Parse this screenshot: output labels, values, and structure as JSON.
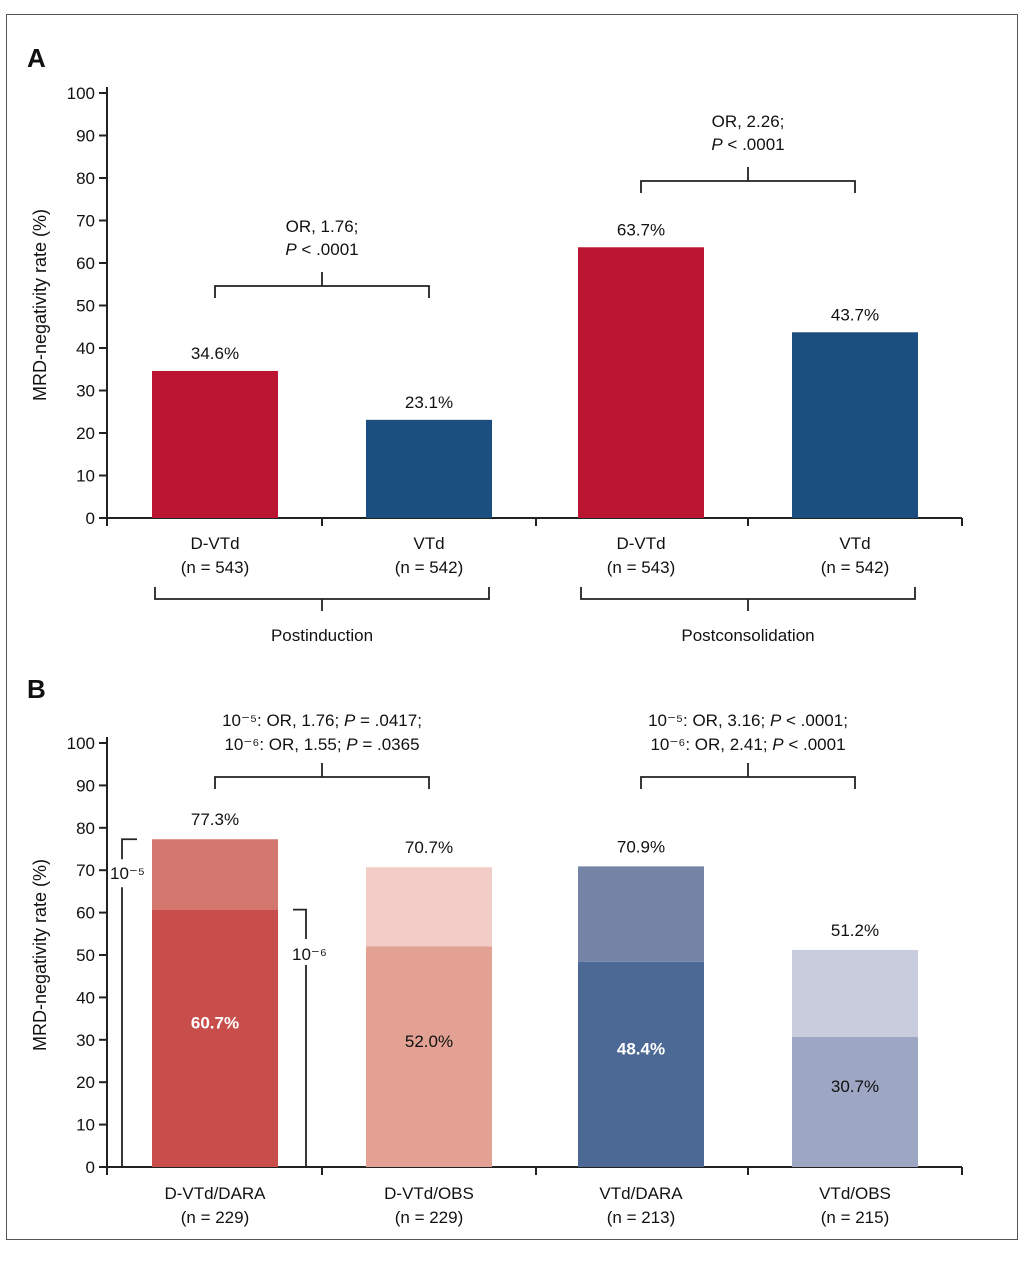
{
  "chart_data": [
    {
      "panel": "A",
      "type": "bar",
      "ylabel": "MRD-negativity rate (%)",
      "ylim": [
        0,
        100
      ],
      "yticks": [
        0,
        10,
        20,
        30,
        40,
        50,
        60,
        70,
        80,
        90,
        100
      ],
      "groups": [
        {
          "label": "Postinduction",
          "bars": [
            {
              "name": "D-VTd",
              "n": "(n = 543)",
              "value": 34.6,
              "value_label": "34.6%",
              "color": "#BB1533"
            },
            {
              "name": "VTd",
              "n": "(n = 542)",
              "value": 23.1,
              "value_label": "23.1%",
              "color": "#1B4F7F"
            }
          ],
          "annotation": [
            "OR, 1.76;",
            "P < .0001"
          ]
        },
        {
          "label": "Postconsolidation",
          "bars": [
            {
              "name": "D-VTd",
              "n": "(n = 543)",
              "value": 63.7,
              "value_label": "63.7%",
              "color": "#BB1533"
            },
            {
              "name": "VTd",
              "n": "(n = 542)",
              "value": 43.7,
              "value_label": "43.7%",
              "color": "#1B4F7F"
            }
          ],
          "annotation": [
            "OR, 2.26;",
            "P < .0001"
          ]
        }
      ]
    },
    {
      "panel": "B",
      "type": "bar",
      "ylabel": "MRD-negativity rate (%)",
      "ylim": [
        0,
        100
      ],
      "yticks": [
        0,
        10,
        20,
        30,
        40,
        50,
        60,
        70,
        80,
        90,
        100
      ],
      "bars": [
        {
          "name": "D-VTd/DARA",
          "n": "(n = 229)",
          "value_1e5": 77.3,
          "label_1e5": "77.3%",
          "value_1e6": 60.7,
          "label_1e6": "60.7%",
          "color_top": "#D4776E",
          "color_bottom": "#C84E4C",
          "inner_label_color": "#ffffff"
        },
        {
          "name": "D-VTd/OBS",
          "n": "(n = 229)",
          "value_1e5": 70.7,
          "label_1e5": "70.7%",
          "value_1e6": 52.0,
          "label_1e6": "52.0%",
          "color_top": "#F2CCC6",
          "color_bottom": "#E3A194",
          "inner_label_color": "#111111"
        },
        {
          "name": "VTd/DARA",
          "n": "(n = 213)",
          "value_1e5": 70.9,
          "label_1e5": "70.9%",
          "value_1e6": 48.4,
          "label_1e6": "48.4%",
          "color_top": "#7584A6",
          "color_bottom": "#4C6894",
          "inner_label_color": "#ffffff"
        },
        {
          "name": "VTd/OBS",
          "n": "(n = 215)",
          "value_1e5": 51.2,
          "label_1e5": "51.2%",
          "value_1e6": 30.7,
          "label_1e6": "30.7%",
          "color_top": "#C9CCDC",
          "color_bottom": "#9DA6C2",
          "inner_label_color": "#111111"
        }
      ],
      "threshold_labels": {
        "t1e5": "10⁻⁵",
        "t1e6": "10⁻⁶"
      },
      "annotations": [
        {
          "line1": [
            "10⁻⁵: OR, 1.76; ",
            "P",
            " = .0417;"
          ],
          "line2": [
            "10⁻⁶: OR, 1.55; ",
            "P",
            " = .0365"
          ]
        },
        {
          "line1": [
            "10⁻⁵: OR, 3.16; ",
            "P",
            " < .0001;"
          ],
          "line2": [
            "10⁻⁶: OR, 2.41; ",
            "P",
            " < .0001"
          ]
        }
      ]
    }
  ]
}
